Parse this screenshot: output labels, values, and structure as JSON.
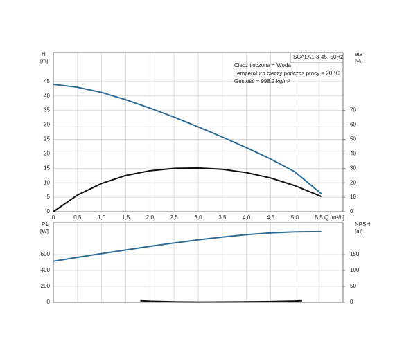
{
  "chart_data": [
    {
      "type": "line",
      "title": "SCALA1 3-45, 50Hz",
      "annotations": [
        "Ciecz tłoczona = Woda",
        "Temperatura cieczy podczas pracy = 20 °C",
        "Gęstość = 998.2 kg/m³"
      ],
      "ylabel": "H",
      "yunit": "[m]",
      "y2label": "eta",
      "y2unit": "[%]",
      "xlabel": "Q [m³/h]",
      "xlim": [
        0,
        6
      ],
      "xticks": [
        0,
        {
          "value": 0.5,
          "label": "0,5"
        },
        {
          "value": 1,
          "label": "1,0"
        },
        {
          "value": 1.5,
          "label": "1,5"
        },
        {
          "value": 2,
          "label": "2,0"
        },
        {
          "value": 2.5,
          "label": "2,5"
        },
        {
          "value": 3,
          "label": "3,0"
        },
        {
          "value": 3.5,
          "label": "3,5"
        },
        {
          "value": 4,
          "label": "4,0"
        },
        {
          "value": 4.5,
          "label": "4,5"
        },
        {
          "value": 5,
          "label": "5,0"
        },
        {
          "value": 5.5,
          "label": "5,5"
        }
      ],
      "show_xtick_labels": true,
      "ylim": [
        0,
        55
      ],
      "yticks": [
        0,
        5,
        10,
        15,
        20,
        25,
        30,
        35,
        40,
        45
      ],
      "y2lim": [
        0,
        110
      ],
      "y2ticks": [
        0,
        10,
        20,
        30,
        40,
        50,
        60,
        70
      ],
      "grid": true,
      "series": [
        {
          "color": "#2b6a94",
          "x": [
            0,
            0.5,
            1,
            1.5,
            2,
            2.5,
            3,
            3.5,
            4,
            4.5,
            5,
            5.55
          ],
          "values": [
            44,
            43,
            41.2,
            38.7,
            35.8,
            32.7,
            29.3,
            25.8,
            22.1,
            18.2,
            13.8,
            6.2
          ]
        },
        {
          "color": "#111111",
          "axis": "y2",
          "x": [
            0,
            0.5,
            1,
            1.5,
            2,
            2.5,
            3,
            3.5,
            4,
            4.5,
            5,
            5.55
          ],
          "values": [
            0,
            11.5,
            19.5,
            25,
            28.3,
            29.9,
            30.2,
            29.3,
            27,
            23.3,
            18,
            10.5
          ]
        }
      ]
    },
    {
      "type": "line",
      "ylabel": "P1",
      "yunit": "[W]",
      "y2label": "NPSH",
      "y2unit": "[m]",
      "xlim": [
        0,
        6
      ],
      "xticks": [
        0,
        0.5,
        1,
        1.5,
        2,
        2.5,
        3,
        3.5,
        4,
        4.5,
        5,
        5.5
      ],
      "show_xtick_labels": false,
      "ylim": [
        0,
        1000
      ],
      "yticks": [
        0,
        200,
        400,
        600
      ],
      "y2lim": [
        0,
        250
      ],
      "y2ticks": [
        0,
        50,
        100,
        150
      ],
      "grid": true,
      "series": [
        {
          "color": "#2b6a94",
          "x": [
            0,
            0.5,
            1,
            1.5,
            2,
            2.5,
            3,
            3.5,
            4,
            4.5,
            5,
            5.55
          ],
          "values": [
            515,
            565,
            612,
            658,
            703,
            745,
            785,
            820,
            850,
            872,
            885,
            888
          ]
        },
        {
          "color": "#111111",
          "axis": "y2",
          "x": [
            1.8,
            2,
            2.5,
            3,
            3.5,
            4,
            4.5,
            5,
            5.15
          ],
          "values": [
            5,
            3.5,
            1.5,
            0.8,
            1,
            1.5,
            2.5,
            4,
            5
          ]
        }
      ]
    }
  ]
}
